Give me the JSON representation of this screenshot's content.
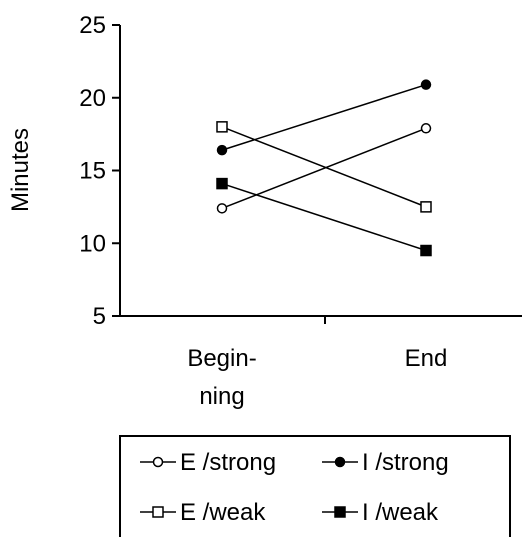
{
  "chart_data": {
    "type": "line",
    "title": "",
    "xlabel": "",
    "ylabel": "Minutes",
    "ylim": [
      5,
      25
    ],
    "yticks": [
      "5",
      "10",
      "15",
      "20",
      "25"
    ],
    "categories": [
      [
        "Begin-",
        "ning"
      ],
      [
        "End"
      ]
    ],
    "grid": false,
    "legend_position": "bottom",
    "series": [
      {
        "name": "E /strong",
        "marker": "circle-open",
        "values": [
          12.4,
          17.9
        ]
      },
      {
        "name": "I /strong",
        "marker": "circle-filled",
        "values": [
          16.4,
          20.9
        ]
      },
      {
        "name": "E /weak",
        "marker": "square-open",
        "values": [
          18.0,
          12.5
        ]
      },
      {
        "name": "I /weak",
        "marker": "square-filled",
        "values": [
          14.1,
          9.5
        ]
      }
    ],
    "colors": {
      "line": "#000000",
      "background": "#ffffff"
    }
  }
}
